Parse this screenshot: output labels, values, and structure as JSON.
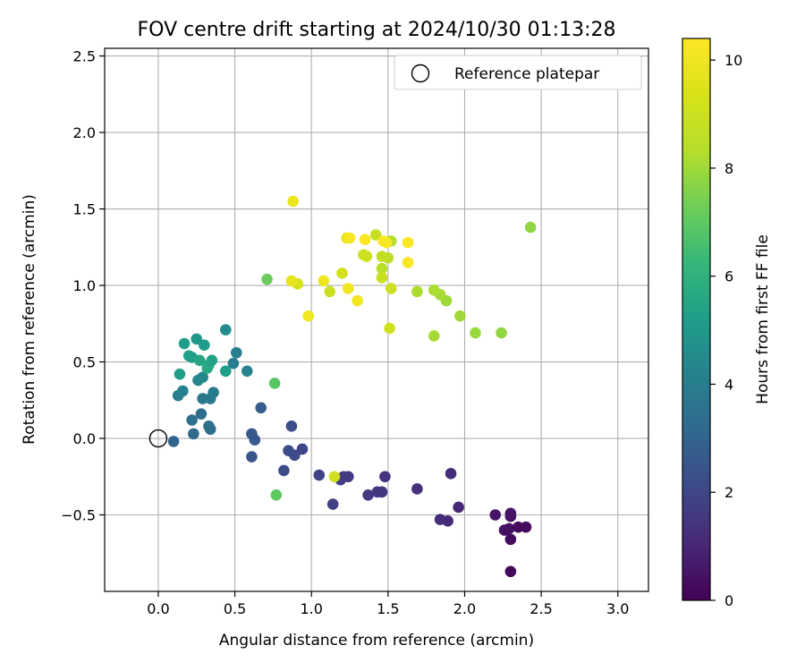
{
  "chart_data": {
    "type": "scatter",
    "title": "FOV centre drift starting at 2024/10/30 01:13:28",
    "xlabel": "Angular distance from reference (arcmin)",
    "ylabel": "Rotation from reference (arcmin)",
    "xlim": [
      -0.35,
      3.2
    ],
    "ylim": [
      -1.0,
      2.55
    ],
    "xticks": [
      0.0,
      0.5,
      1.0,
      1.5,
      2.0,
      2.5,
      3.0
    ],
    "yticks": [
      -0.5,
      0.0,
      0.5,
      1.0,
      1.5,
      2.0,
      2.5
    ],
    "xtick_labels": [
      "0.0",
      "0.5",
      "1.0",
      "1.5",
      "2.0",
      "2.5",
      "3.0"
    ],
    "ytick_labels": [
      "−0.5",
      "0.0",
      "0.5",
      "1.0",
      "1.5",
      "2.0",
      "2.5"
    ],
    "grid": true,
    "legend": {
      "placement": "top-right",
      "entries": [
        "Reference platepar"
      ]
    },
    "reference_point": {
      "x": 0.0,
      "y": 0.0
    },
    "colorbar": {
      "label": "Hours from first FF file",
      "range": [
        0,
        10.4
      ],
      "ticks": [
        0,
        2,
        4,
        6,
        8,
        10
      ],
      "tick_labels": [
        "0",
        "2",
        "4",
        "6",
        "8",
        "10"
      ],
      "colormap": "viridis"
    },
    "points": [
      {
        "x": 2.3,
        "y": -0.87,
        "t": 0.2
      },
      {
        "x": 2.3,
        "y": -0.66,
        "t": 0.3
      },
      {
        "x": 2.26,
        "y": -0.6,
        "t": 0.4
      },
      {
        "x": 2.29,
        "y": -0.59,
        "t": 0.4
      },
      {
        "x": 2.35,
        "y": -0.58,
        "t": 0.3
      },
      {
        "x": 2.4,
        "y": -0.58,
        "t": 0.3
      },
      {
        "x": 2.3,
        "y": -0.51,
        "t": 0.4
      },
      {
        "x": 2.3,
        "y": -0.49,
        "t": 0.5
      },
      {
        "x": 2.2,
        "y": -0.5,
        "t": 0.6
      },
      {
        "x": 1.96,
        "y": -0.45,
        "t": 1.0
      },
      {
        "x": 1.89,
        "y": -0.54,
        "t": 1.1
      },
      {
        "x": 1.84,
        "y": -0.53,
        "t": 1.2
      },
      {
        "x": 1.91,
        "y": -0.23,
        "t": 1.2
      },
      {
        "x": 1.69,
        "y": -0.33,
        "t": 1.3
      },
      {
        "x": 1.48,
        "y": -0.25,
        "t": 1.4
      },
      {
        "x": 1.46,
        "y": -0.35,
        "t": 1.5
      },
      {
        "x": 1.43,
        "y": -0.35,
        "t": 1.5
      },
      {
        "x": 1.37,
        "y": -0.37,
        "t": 1.6
      },
      {
        "x": 1.24,
        "y": -0.25,
        "t": 1.6
      },
      {
        "x": 1.21,
        "y": -0.25,
        "t": 1.7
      },
      {
        "x": 1.19,
        "y": -0.27,
        "t": 1.7
      },
      {
        "x": 1.14,
        "y": -0.43,
        "t": 1.8
      },
      {
        "x": 1.05,
        "y": -0.24,
        "t": 1.9
      },
      {
        "x": 0.94,
        "y": -0.07,
        "t": 2.0
      },
      {
        "x": 0.89,
        "y": -0.11,
        "t": 2.1
      },
      {
        "x": 0.85,
        "y": -0.08,
        "t": 2.2
      },
      {
        "x": 0.87,
        "y": 0.08,
        "t": 2.3
      },
      {
        "x": 0.82,
        "y": -0.21,
        "t": 2.2
      },
      {
        "x": 0.61,
        "y": -0.12,
        "t": 2.5
      },
      {
        "x": 0.63,
        "y": -0.01,
        "t": 2.6
      },
      {
        "x": 0.61,
        "y": 0.03,
        "t": 2.6
      },
      {
        "x": 0.67,
        "y": 0.2,
        "t": 2.8
      },
      {
        "x": 0.1,
        "y": -0.02,
        "t": 3.0
      },
      {
        "x": 0.23,
        "y": 0.03,
        "t": 3.2
      },
      {
        "x": 0.34,
        "y": 0.06,
        "t": 3.3
      },
      {
        "x": 0.33,
        "y": 0.08,
        "t": 3.4
      },
      {
        "x": 0.28,
        "y": 0.16,
        "t": 3.4
      },
      {
        "x": 0.22,
        "y": 0.12,
        "t": 3.5
      },
      {
        "x": 0.29,
        "y": 0.26,
        "t": 3.7
      },
      {
        "x": 0.34,
        "y": 0.26,
        "t": 3.8
      },
      {
        "x": 0.36,
        "y": 0.3,
        "t": 3.9
      },
      {
        "x": 0.13,
        "y": 0.28,
        "t": 4.0
      },
      {
        "x": 0.16,
        "y": 0.31,
        "t": 4.1
      },
      {
        "x": 0.26,
        "y": 0.38,
        "t": 4.3
      },
      {
        "x": 0.29,
        "y": 0.4,
        "t": 4.4
      },
      {
        "x": 0.58,
        "y": 0.44,
        "t": 4.2
      },
      {
        "x": 0.49,
        "y": 0.49,
        "t": 4.0
      },
      {
        "x": 0.51,
        "y": 0.56,
        "t": 4.0
      },
      {
        "x": 0.44,
        "y": 0.71,
        "t": 4.5
      },
      {
        "x": 0.44,
        "y": 0.44,
        "t": 5.2
      },
      {
        "x": 0.14,
        "y": 0.42,
        "t": 5.2
      },
      {
        "x": 0.2,
        "y": 0.54,
        "t": 5.4
      },
      {
        "x": 0.22,
        "y": 0.53,
        "t": 5.3
      },
      {
        "x": 0.25,
        "y": 0.65,
        "t": 4.9
      },
      {
        "x": 0.3,
        "y": 0.61,
        "t": 5.1
      },
      {
        "x": 0.17,
        "y": 0.62,
        "t": 5.2
      },
      {
        "x": 0.27,
        "y": 0.51,
        "t": 5.5
      },
      {
        "x": 0.32,
        "y": 0.46,
        "t": 5.6
      },
      {
        "x": 0.33,
        "y": 0.48,
        "t": 5.6
      },
      {
        "x": 0.35,
        "y": 0.51,
        "t": 5.4
      },
      {
        "x": 0.76,
        "y": 0.36,
        "t": 6.9
      },
      {
        "x": 0.77,
        "y": -0.37,
        "t": 7.0
      },
      {
        "x": 0.71,
        "y": 1.04,
        "t": 7.2
      },
      {
        "x": 2.43,
        "y": 1.38,
        "t": 7.8
      },
      {
        "x": 2.24,
        "y": 0.69,
        "t": 7.8
      },
      {
        "x": 2.07,
        "y": 0.69,
        "t": 7.9
      },
      {
        "x": 1.97,
        "y": 0.8,
        "t": 8.0
      },
      {
        "x": 1.88,
        "y": 0.9,
        "t": 8.0
      },
      {
        "x": 1.84,
        "y": 0.94,
        "t": 8.1
      },
      {
        "x": 1.8,
        "y": 0.97,
        "t": 8.2
      },
      {
        "x": 1.8,
        "y": 0.67,
        "t": 8.1
      },
      {
        "x": 1.69,
        "y": 0.96,
        "t": 8.2
      },
      {
        "x": 1.52,
        "y": 1.29,
        "t": 8.3
      },
      {
        "x": 1.46,
        "y": 1.11,
        "t": 8.4
      },
      {
        "x": 1.5,
        "y": 1.18,
        "t": 8.6
      },
      {
        "x": 1.46,
        "y": 1.19,
        "t": 8.7
      },
      {
        "x": 1.42,
        "y": 1.33,
        "t": 8.8
      },
      {
        "x": 1.46,
        "y": 1.05,
        "t": 8.9
      },
      {
        "x": 1.52,
        "y": 0.98,
        "t": 9.0
      },
      {
        "x": 1.51,
        "y": 0.72,
        "t": 9.1
      },
      {
        "x": 1.36,
        "y": 1.19,
        "t": 8.9
      },
      {
        "x": 1.34,
        "y": 1.2,
        "t": 9.0
      },
      {
        "x": 1.12,
        "y": 0.96,
        "t": 8.9
      },
      {
        "x": 1.2,
        "y": 1.08,
        "t": 9.2
      },
      {
        "x": 1.15,
        "y": -0.25,
        "t": 9.1
      },
      {
        "x": 0.91,
        "y": 1.01,
        "t": 9.3
      },
      {
        "x": 0.87,
        "y": 1.03,
        "t": 9.8
      },
      {
        "x": 0.88,
        "y": 1.55,
        "t": 9.9
      },
      {
        "x": 0.98,
        "y": 0.8,
        "t": 10.1
      },
      {
        "x": 1.08,
        "y": 1.03,
        "t": 10.0
      },
      {
        "x": 1.24,
        "y": 0.98,
        "t": 10.1
      },
      {
        "x": 1.3,
        "y": 0.9,
        "t": 10.1
      },
      {
        "x": 1.23,
        "y": 1.31,
        "t": 9.8
      },
      {
        "x": 1.25,
        "y": 1.31,
        "t": 10.2
      },
      {
        "x": 1.35,
        "y": 1.3,
        "t": 10.3
      },
      {
        "x": 1.47,
        "y": 1.29,
        "t": 10.4
      },
      {
        "x": 1.49,
        "y": 1.28,
        "t": 10.3
      },
      {
        "x": 1.63,
        "y": 1.28,
        "t": 10.3
      },
      {
        "x": 1.63,
        "y": 1.15,
        "t": 10.2
      }
    ]
  }
}
